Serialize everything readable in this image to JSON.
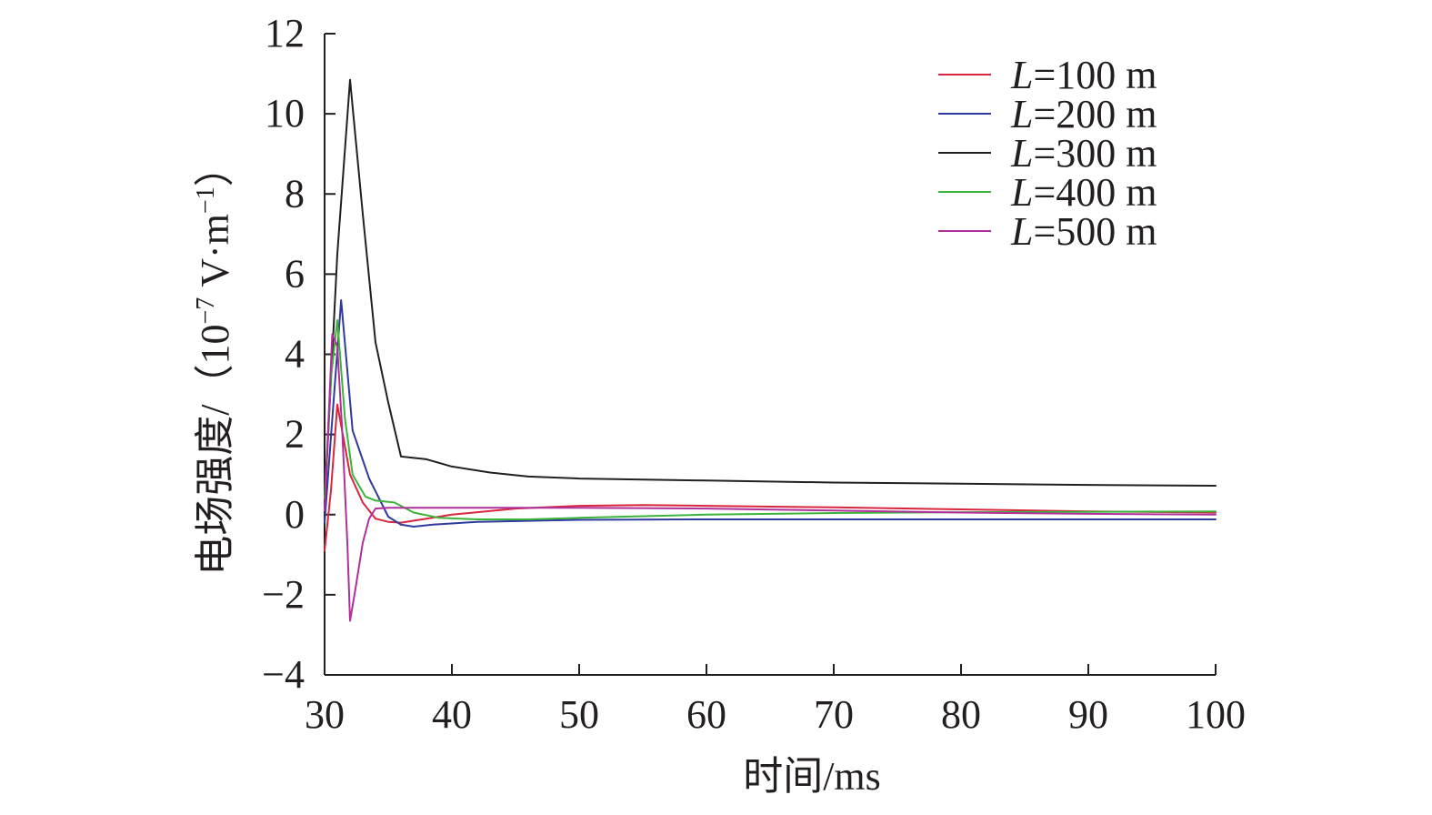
{
  "chart_data": {
    "type": "line",
    "xlabel": "时间/ms",
    "ylabel_main": "电场强度/（10",
    "ylabel_exp1": "−7",
    "ylabel_mid": " V·m",
    "ylabel_exp2": "−1",
    "ylabel_end": "）",
    "xlim": [
      30,
      100
    ],
    "ylim": [
      -4,
      12
    ],
    "xticks": [
      30,
      40,
      50,
      60,
      70,
      80,
      90,
      100
    ],
    "yticks": [
      -4,
      -2,
      0,
      2,
      4,
      6,
      8,
      10,
      12
    ],
    "xtick_labels": [
      "30",
      "40",
      "50",
      "60",
      "70",
      "80",
      "90",
      "100"
    ],
    "ytick_labels": [
      "−4",
      "−2",
      "0",
      "2",
      "4",
      "6",
      "8",
      "10",
      "12"
    ],
    "grid": false,
    "legend_position": "top-right",
    "series": [
      {
        "name": "L=100 m",
        "name_italic": "L",
        "name_rest": "=100 m",
        "color": "#d7263d",
        "points": [
          [
            30,
            -0.9
          ],
          [
            30.5,
            0.6
          ],
          [
            31,
            2.75
          ],
          [
            32,
            1.0
          ],
          [
            33,
            0.3
          ],
          [
            34,
            -0.1
          ],
          [
            35,
            -0.18
          ],
          [
            36,
            -0.2
          ],
          [
            38,
            -0.1
          ],
          [
            40,
            0.0
          ],
          [
            45,
            0.15
          ],
          [
            50,
            0.22
          ],
          [
            55,
            0.24
          ],
          [
            60,
            0.22
          ],
          [
            70,
            0.18
          ],
          [
            80,
            0.13
          ],
          [
            90,
            0.08
          ],
          [
            100,
            0.05
          ]
        ]
      },
      {
        "name": "L=200 m",
        "name_italic": "L",
        "name_rest": "=200 m",
        "color": "#2f3a9e",
        "points": [
          [
            30,
            -0.2
          ],
          [
            30.7,
            2.8
          ],
          [
            31.3,
            5.35
          ],
          [
            32.2,
            2.1
          ],
          [
            33.5,
            0.9
          ],
          [
            35,
            -0.05
          ],
          [
            36,
            -0.25
          ],
          [
            37,
            -0.3
          ],
          [
            38.5,
            -0.25
          ],
          [
            42,
            -0.18
          ],
          [
            50,
            -0.13
          ],
          [
            60,
            -0.12
          ],
          [
            70,
            -0.12
          ],
          [
            80,
            -0.12
          ],
          [
            90,
            -0.12
          ],
          [
            100,
            -0.12
          ]
        ]
      },
      {
        "name": "L=300 m",
        "name_italic": "L",
        "name_rest": "=300 m",
        "color": "#231f20",
        "points": [
          [
            30,
            0.2
          ],
          [
            31,
            6.5
          ],
          [
            32,
            10.85
          ],
          [
            33,
            7.5
          ],
          [
            34,
            4.3
          ],
          [
            35,
            2.8
          ],
          [
            36,
            1.45
          ],
          [
            38,
            1.38
          ],
          [
            40,
            1.2
          ],
          [
            43,
            1.05
          ],
          [
            46,
            0.95
          ],
          [
            50,
            0.9
          ],
          [
            60,
            0.85
          ],
          [
            70,
            0.8
          ],
          [
            80,
            0.77
          ],
          [
            90,
            0.74
          ],
          [
            100,
            0.72
          ]
        ]
      },
      {
        "name": "L=400 m",
        "name_italic": "L",
        "name_rest": "=400 m",
        "color": "#3cb43c",
        "points": [
          [
            30,
            0.4
          ],
          [
            30.5,
            3.4
          ],
          [
            31,
            4.85
          ],
          [
            31.6,
            2.4
          ],
          [
            32.2,
            1.0
          ],
          [
            33.2,
            0.45
          ],
          [
            34,
            0.35
          ],
          [
            35.5,
            0.3
          ],
          [
            37,
            0.05
          ],
          [
            39,
            -0.08
          ],
          [
            42,
            -0.12
          ],
          [
            46,
            -0.12
          ],
          [
            50,
            -0.08
          ],
          [
            60,
            0.0
          ],
          [
            70,
            0.04
          ],
          [
            80,
            0.06
          ],
          [
            90,
            0.07
          ],
          [
            100,
            0.08
          ]
        ]
      },
      {
        "name": "L=500 m",
        "name_italic": "L",
        "name_rest": "=500 m",
        "color": "#b0309a",
        "points": [
          [
            30,
            0.1
          ],
          [
            30.6,
            4.5
          ],
          [
            31,
            4.2
          ],
          [
            31.4,
            2.0
          ],
          [
            31.8,
            -0.8
          ],
          [
            32,
            -2.65
          ],
          [
            32.4,
            -1.9
          ],
          [
            33,
            -0.7
          ],
          [
            33.5,
            -0.1
          ],
          [
            34,
            0.15
          ],
          [
            35,
            0.17
          ],
          [
            40,
            0.17
          ],
          [
            50,
            0.17
          ],
          [
            60,
            0.15
          ],
          [
            70,
            0.1
          ],
          [
            80,
            0.05
          ],
          [
            90,
            0.02
          ],
          [
            100,
            0.0
          ]
        ]
      }
    ]
  }
}
